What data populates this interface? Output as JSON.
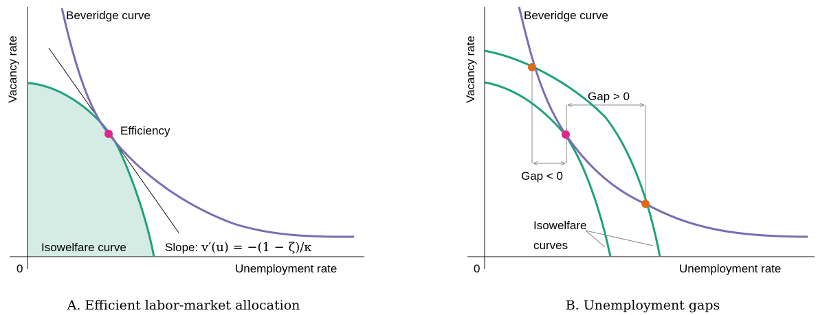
{
  "colors": {
    "beveridge": "#7b6cb5",
    "isowelfare": "#1fa27e",
    "isowelfare_fill": "#d4ece3",
    "efficiency_point": "#e0278c",
    "gap_points": "#e06b17"
  },
  "panel_a": {
    "caption": "A. Efficient labor-market allocation",
    "y_axis_label": "Vacancy rate",
    "x_axis_label": "Unemployment rate",
    "origin": "0",
    "beveridge_label": "Beveridge curve",
    "efficiency_label": "Efficiency",
    "isowelfare_label": "Isowelfare curve",
    "slope_prefix": "Slope: ",
    "slope_formula": "v′(u) = −(1 − ζ)/κ"
  },
  "panel_b": {
    "caption": "B. Unemployment gaps",
    "y_axis_label": "Vacancy rate",
    "x_axis_label": "Unemployment rate",
    "origin": "0",
    "beveridge_label": "Beveridge curve",
    "gap_positive_label": "Gap > 0",
    "gap_negative_label": "Gap < 0",
    "isowelfare_label_line1": "Isowelfare",
    "isowelfare_label_line2": "curves"
  }
}
